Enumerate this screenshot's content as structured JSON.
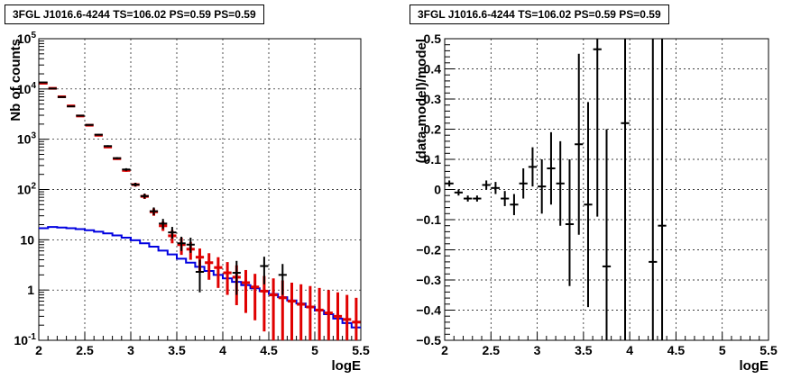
{
  "chart_data": [
    {
      "type": "scatter",
      "title": "3FGL J1016.6-4244 TS=106.02 PS=0.59 PS=0.59",
      "xlabel": "logE",
      "ylabel": "Nb of counts",
      "xlim": [
        2,
        5.5
      ],
      "ylim": [
        0.1,
        100000
      ],
      "yscale": "log",
      "grid": true,
      "x_ticks": [
        "2",
        "2.5",
        "3",
        "3.5",
        "4",
        "4.5",
        "5",
        "5.5"
      ],
      "y_ticks": [
        "10^-1",
        "1",
        "10",
        "10^2",
        "10^3",
        "10^4",
        "10^5"
      ],
      "series": [
        {
          "color": "#000000",
          "kind": "data-points",
          "points": [
            {
              "x": 2.05,
              "y": 13500,
              "lo": 13300,
              "hi": 13700
            },
            {
              "x": 2.15,
              "y": 10200,
              "lo": 10000,
              "hi": 10400
            },
            {
              "x": 2.25,
              "y": 6900,
              "lo": 6750,
              "hi": 7050
            },
            {
              "x": 2.35,
              "y": 4500,
              "lo": 4400,
              "hi": 4600
            },
            {
              "x": 2.45,
              "y": 2950,
              "lo": 2870,
              "hi": 3030
            },
            {
              "x": 2.55,
              "y": 1930,
              "lo": 1870,
              "hi": 1990
            },
            {
              "x": 2.65,
              "y": 1230,
              "lo": 1190,
              "hi": 1270
            },
            {
              "x": 2.75,
              "y": 730,
              "lo": 700,
              "hi": 760
            },
            {
              "x": 2.85,
              "y": 420,
              "lo": 400,
              "hi": 440
            },
            {
              "x": 2.95,
              "y": 250,
              "lo": 235,
              "hi": 265
            },
            {
              "x": 3.05,
              "y": 125,
              "lo": 115,
              "hi": 136
            },
            {
              "x": 3.15,
              "y": 74,
              "lo": 66,
              "hi": 83
            },
            {
              "x": 3.25,
              "y": 37,
              "lo": 31,
              "hi": 44
            },
            {
              "x": 3.35,
              "y": 21,
              "lo": 16.5,
              "hi": 26
            },
            {
              "x": 3.45,
              "y": 14,
              "lo": 10.5,
              "hi": 18
            },
            {
              "x": 3.55,
              "y": 8.5,
              "lo": 6,
              "hi": 11.5
            },
            {
              "x": 3.65,
              "y": 8,
              "lo": 5.5,
              "hi": 11
            },
            {
              "x": 3.75,
              "y": 2.3,
              "lo": 0.9,
              "hi": 4
            },
            {
              "x": 4.15,
              "y": 2.2,
              "lo": 0.8,
              "hi": 3.8
            },
            {
              "x": 4.45,
              "y": 3,
              "lo": 1.3,
              "hi": 4.6
            },
            {
              "x": 4.65,
              "y": 2,
              "lo": 0.8,
              "hi": 3.3
            }
          ]
        },
        {
          "color": "#e00000",
          "kind": "model-points",
          "points": [
            {
              "x": 2.05,
              "y": 13000,
              "lo": 12800,
              "hi": 13200
            },
            {
              "x": 2.15,
              "y": 10300,
              "lo": 10100,
              "hi": 10500
            },
            {
              "x": 2.25,
              "y": 7000,
              "lo": 6850,
              "hi": 7150
            },
            {
              "x": 2.35,
              "y": 4600,
              "lo": 4500,
              "hi": 4700
            },
            {
              "x": 2.45,
              "y": 2900,
              "lo": 2830,
              "hi": 2970
            },
            {
              "x": 2.55,
              "y": 1900,
              "lo": 1850,
              "hi": 1950
            },
            {
              "x": 2.65,
              "y": 1200,
              "lo": 1160,
              "hi": 1240
            },
            {
              "x": 2.75,
              "y": 700,
              "lo": 670,
              "hi": 730
            },
            {
              "x": 2.85,
              "y": 410,
              "lo": 390,
              "hi": 430
            },
            {
              "x": 2.95,
              "y": 240,
              "lo": 225,
              "hi": 255
            },
            {
              "x": 3.05,
              "y": 125,
              "lo": 114,
              "hi": 136
            },
            {
              "x": 3.15,
              "y": 73,
              "lo": 65,
              "hi": 81
            },
            {
              "x": 3.25,
              "y": 36,
              "lo": 30,
              "hi": 42
            },
            {
              "x": 3.35,
              "y": 19,
              "lo": 15,
              "hi": 23
            },
            {
              "x": 3.45,
              "y": 12,
              "lo": 8.5,
              "hi": 15.5
            },
            {
              "x": 3.55,
              "y": 8,
              "lo": 5,
              "hi": 11
            },
            {
              "x": 3.65,
              "y": 6.5,
              "lo": 4,
              "hi": 9
            },
            {
              "x": 3.75,
              "y": 4.5,
              "lo": 2.3,
              "hi": 6.7
            },
            {
              "x": 3.85,
              "y": 3.5,
              "lo": 1.6,
              "hi": 5.4
            },
            {
              "x": 3.95,
              "y": 2.8,
              "lo": 1.1,
              "hi": 4.5
            },
            {
              "x": 4.05,
              "y": 2.2,
              "lo": 0.8,
              "hi": 3.6
            },
            {
              "x": 4.15,
              "y": 1.8,
              "lo": 0.5,
              "hi": 3.1
            },
            {
              "x": 4.25,
              "y": 1.4,
              "lo": 0.35,
              "hi": 2.5
            },
            {
              "x": 4.35,
              "y": 1.15,
              "lo": 0.25,
              "hi": 2.1
            },
            {
              "x": 4.45,
              "y": 0.95,
              "lo": 0.15,
              "hi": 1.9
            },
            {
              "x": 4.55,
              "y": 0.8,
              "lo": 0.1,
              "hi": 1.7
            },
            {
              "x": 4.65,
              "y": 0.7,
              "lo": 0.1,
              "hi": 1.55
            },
            {
              "x": 4.75,
              "y": 0.6,
              "lo": 0.1,
              "hi": 1.4
            },
            {
              "x": 4.85,
              "y": 0.52,
              "lo": 0.1,
              "hi": 1.3
            },
            {
              "x": 4.95,
              "y": 0.46,
              "lo": 0.1,
              "hi": 1.2
            },
            {
              "x": 5.05,
              "y": 0.4,
              "lo": 0.1,
              "hi": 1.1
            },
            {
              "x": 5.15,
              "y": 0.35,
              "lo": 0.1,
              "hi": 1.0
            },
            {
              "x": 5.25,
              "y": 0.3,
              "lo": 0.1,
              "hi": 0.9
            },
            {
              "x": 5.35,
              "y": 0.26,
              "lo": 0.1,
              "hi": 0.8
            },
            {
              "x": 5.45,
              "y": 0.23,
              "lo": 0.1,
              "hi": 0.7
            }
          ]
        },
        {
          "color": "#0000e0",
          "kind": "step-histogram",
          "x_edges": [
            2.0,
            2.1,
            2.2,
            2.3,
            2.4,
            2.5,
            2.6,
            2.7,
            2.8,
            2.9,
            3.0,
            3.1,
            3.2,
            3.3,
            3.4,
            3.5,
            3.6,
            3.7,
            3.8,
            3.9,
            4.0,
            4.1,
            4.2,
            4.3,
            4.4,
            4.5,
            4.6,
            4.7,
            4.8,
            4.9,
            5.0,
            5.1,
            5.2,
            5.3,
            5.4,
            5.5
          ],
          "values": [
            17,
            18,
            17.5,
            17,
            16.3,
            15.5,
            14.5,
            13.4,
            12.2,
            11,
            9.8,
            8.5,
            7.3,
            6.1,
            5.1,
            4.2,
            3.5,
            2.9,
            2.4,
            2.0,
            1.7,
            1.45,
            1.25,
            1.08,
            0.95,
            0.83,
            0.72,
            0.62,
            0.54,
            0.46,
            0.39,
            0.33,
            0.27,
            0.22,
            0.18
          ]
        }
      ]
    },
    {
      "type": "scatter",
      "title": "3FGL J1016.6-4244 TS=106.02 PS=0.59 PS=0.59",
      "xlabel": "logE",
      "ylabel": "(data-model)/model",
      "xlim": [
        2,
        5.5
      ],
      "ylim": [
        -0.5,
        0.5
      ],
      "grid": true,
      "x_ticks": [
        "2",
        "2.5",
        "3",
        "3.5",
        "4",
        "4.5",
        "5",
        "5.5"
      ],
      "y_ticks": [
        "−0.5",
        "−0.4",
        "−0.3",
        "−0.2",
        "−0.1",
        "0",
        "0.1",
        "0.2",
        "0.3",
        "0.4",
        "0.5"
      ],
      "series": [
        {
          "color": "#000000",
          "kind": "residuals",
          "points": [
            {
              "x": 2.05,
              "y": 0.02,
              "lo": 0.01,
              "hi": 0.03
            },
            {
              "x": 2.15,
              "y": -0.01,
              "lo": -0.02,
              "hi": 0.0
            },
            {
              "x": 2.25,
              "y": -0.03,
              "lo": -0.04,
              "hi": -0.02
            },
            {
              "x": 2.35,
              "y": -0.03,
              "lo": -0.04,
              "hi": -0.02
            },
            {
              "x": 2.45,
              "y": 0.015,
              "lo": 0.0,
              "hi": 0.03
            },
            {
              "x": 2.55,
              "y": 0.005,
              "lo": -0.015,
              "hi": 0.025
            },
            {
              "x": 2.65,
              "y": -0.03,
              "lo": -0.055,
              "hi": -0.005
            },
            {
              "x": 2.75,
              "y": -0.05,
              "lo": -0.085,
              "hi": -0.015
            },
            {
              "x": 2.85,
              "y": 0.02,
              "lo": -0.03,
              "hi": 0.07
            },
            {
              "x": 2.95,
              "y": 0.075,
              "lo": 0.01,
              "hi": 0.14
            },
            {
              "x": 3.05,
              "y": 0.01,
              "lo": -0.08,
              "hi": 0.1
            },
            {
              "x": 3.15,
              "y": 0.07,
              "lo": -0.05,
              "hi": 0.19
            },
            {
              "x": 3.25,
              "y": 0.02,
              "lo": -0.12,
              "hi": 0.16
            },
            {
              "x": 3.35,
              "y": -0.115,
              "lo": -0.32,
              "hi": 0.1
            },
            {
              "x": 3.45,
              "y": 0.15,
              "lo": -0.15,
              "hi": 0.45
            },
            {
              "x": 3.55,
              "y": -0.05,
              "lo": -0.39,
              "hi": 0.29
            },
            {
              "x": 3.65,
              "y": 0.465,
              "lo": -0.09,
              "hi": 0.5
            },
            {
              "x": 3.75,
              "y": -0.255,
              "lo": -0.5,
              "hi": 0.2
            },
            {
              "x": 3.95,
              "y": 0.22,
              "lo": -0.5,
              "hi": 0.5
            },
            {
              "x": 4.25,
              "y": -0.24,
              "lo": -0.5,
              "hi": 0.5
            },
            {
              "x": 4.35,
              "y": -0.12,
              "lo": -0.5,
              "hi": 0.5
            }
          ]
        }
      ]
    }
  ]
}
